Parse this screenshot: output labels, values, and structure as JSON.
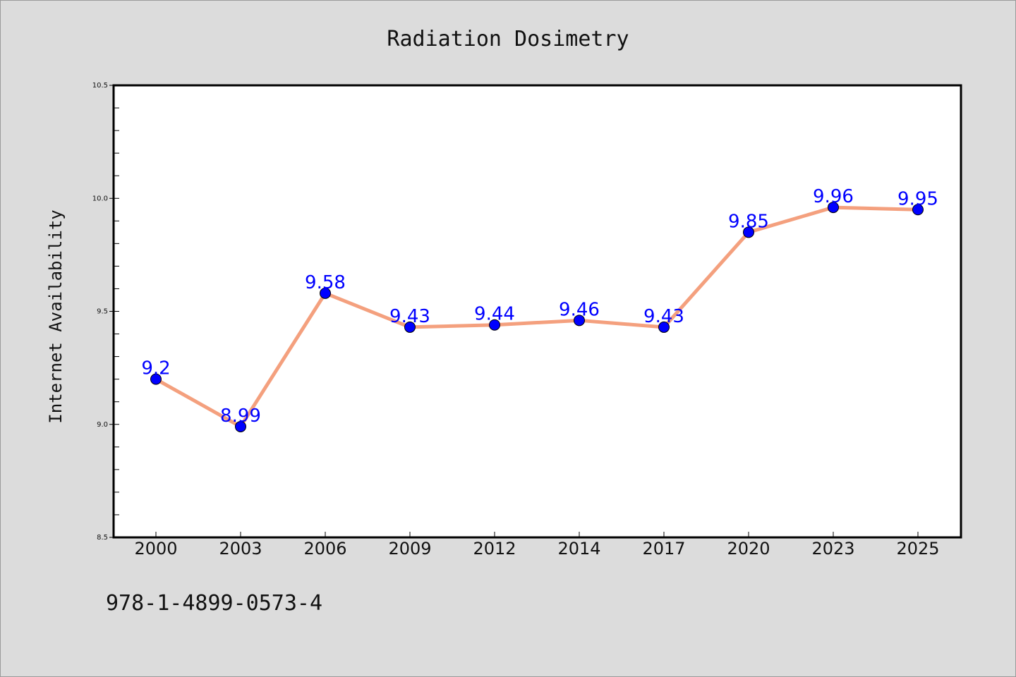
{
  "chart_data": {
    "type": "line",
    "title": "Radiation Dosimetry",
    "xlabel": "",
    "ylabel": "Internet Availability",
    "categories": [
      "2000",
      "2003",
      "2006",
      "2009",
      "2012",
      "2014",
      "2017",
      "2020",
      "2023",
      "2025"
    ],
    "series": [
      {
        "values": [
          9.2,
          8.99,
          9.58,
          9.43,
          9.44,
          9.46,
          9.43,
          9.85,
          9.96,
          9.95
        ],
        "data_labels": [
          "9.2",
          "8.99",
          "9.58",
          "9.43",
          "9.44",
          "9.46",
          "9.43",
          "9.85",
          "9.96",
          "9.95"
        ]
      }
    ],
    "ylim": [
      8.5,
      10.5
    ],
    "y_ticks": [
      "8.5",
      "9.0",
      "9.5",
      "10.0",
      "10.5"
    ],
    "grid": false,
    "legend": "none",
    "colors": {
      "line": "#f4a07e",
      "marker": "#0000ff",
      "label": "#0000ff"
    }
  },
  "footer": {
    "isbn": "978-1-4899-0573-4"
  }
}
